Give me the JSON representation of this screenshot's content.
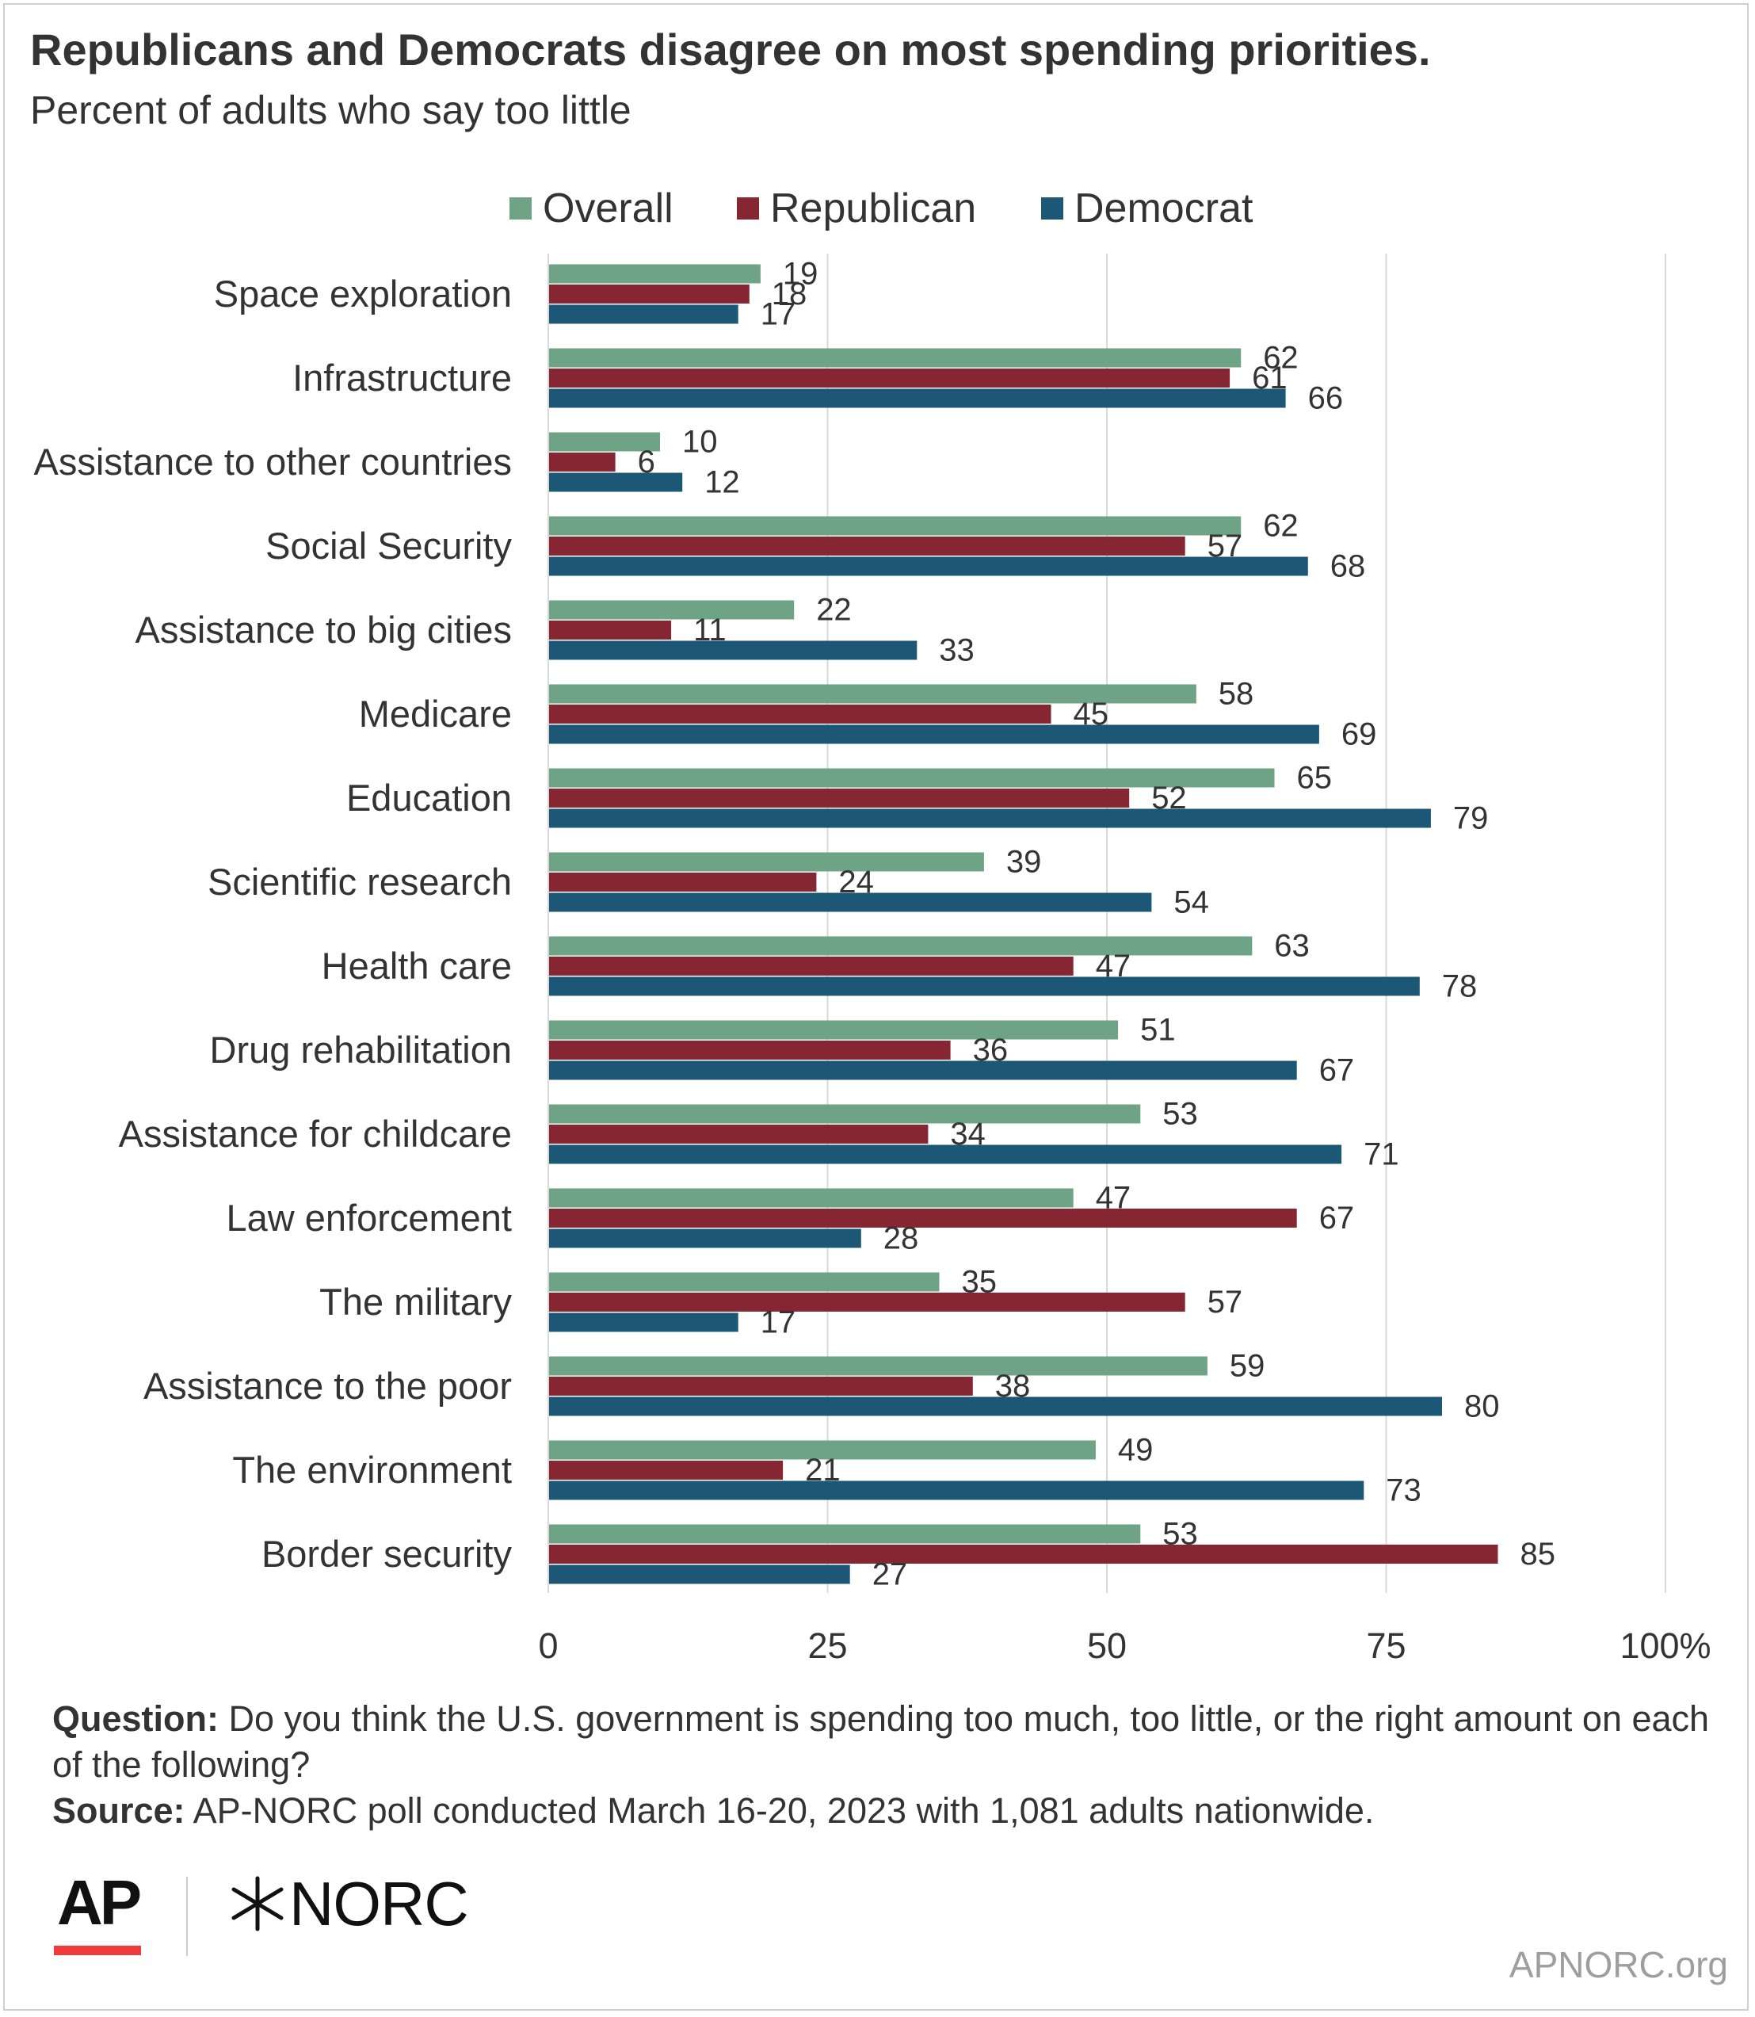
{
  "header": {
    "title": "Republicans and Democrats disagree on most spending priorities.",
    "subtitle": "Percent of adults who say too little"
  },
  "chart_data": {
    "type": "bar",
    "orientation": "horizontal",
    "categories": [
      "Space exploration",
      "Infrastructure",
      "Assistance to other countries",
      "Social Security",
      "Assistance to big cities",
      "Medicare",
      "Education",
      "Scientific research",
      "Health care",
      "Drug rehabilitation",
      "Assistance for childcare",
      "Law enforcement",
      "The military",
      "Assistance to the poor",
      "The environment",
      "Border security"
    ],
    "series": [
      {
        "name": "Overall",
        "color": "#6fa385",
        "values": [
          19,
          62,
          10,
          62,
          22,
          58,
          65,
          39,
          63,
          51,
          53,
          47,
          35,
          59,
          49,
          53
        ]
      },
      {
        "name": "Republican",
        "color": "#852632",
        "values": [
          18,
          61,
          6,
          57,
          11,
          45,
          52,
          24,
          47,
          36,
          34,
          67,
          57,
          38,
          21,
          85
        ]
      },
      {
        "name": "Democrat",
        "color": "#1c5876",
        "values": [
          17,
          66,
          12,
          68,
          33,
          69,
          79,
          54,
          78,
          67,
          71,
          28,
          17,
          80,
          73,
          27
        ]
      }
    ],
    "xlim": [
      0,
      100
    ],
    "xticks": [
      "0",
      "25",
      "50",
      "75",
      "100%"
    ],
    "xtick_values": [
      0,
      25,
      50,
      75,
      100
    ],
    "grid": true,
    "legend_position": "top"
  },
  "footer": {
    "question_label": "Question:",
    "question_text": " Do you think the U.S. government is spending too much, too little, or the right amount on each of the following?",
    "source_label": "Source:",
    "source_text": " AP-NORC poll conducted March 16-20, 2023 with 1,081 adults nationwide.",
    "ap_logo": "AP",
    "norc_logo": "NORC",
    "site": "APNORC.org"
  },
  "colors": {
    "overall": "#6fa385",
    "republican": "#852632",
    "democrat": "#1c5876",
    "ap_red": "#ef3b3b"
  }
}
